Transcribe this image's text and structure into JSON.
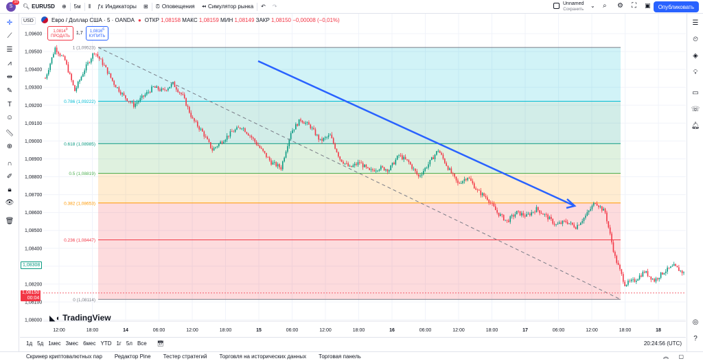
{
  "topbar": {
    "avatar_letter": "S",
    "notification_count": "10",
    "symbol": "EURUSD",
    "interval": "5м",
    "indicators_label": "Индикаторы",
    "alerts_label": "Оповещения",
    "replay_label": "Симулятор рынка",
    "layout_name": "Unnamed",
    "layout_status": "Сохранить",
    "publish_label": "Опубликовать"
  },
  "legend": {
    "title": "Евро / Доллар США · 5 · OANDA",
    "open_label": "ОТКР",
    "open": "1,08158",
    "high_label": "МАКС",
    "high": "1,08159",
    "low_label": "МИН",
    "low": "1,08149",
    "close_label": "ЗАКР",
    "close": "1,08150",
    "change": "−0,00008 (−0,01%)",
    "sell_price": "1,0814",
    "sell_sup": "9",
    "sell_label": "ПРОДАТЬ",
    "spread": "1,7",
    "buy_price": "1,0816",
    "buy_sup": "6",
    "buy_label": "КУПИТЬ",
    "currency": "USD"
  },
  "price_axis": {
    "ticks": [
      "1,09600",
      "1,09500",
      "1,09400",
      "1,09300",
      "1,09200",
      "1,09100",
      "1,09000",
      "1,08900",
      "1,08800",
      "1,08700",
      "1,08600",
      "1,08500",
      "1,08400",
      "1,08300",
      "1,08200",
      "1,08100",
      "1,08000"
    ],
    "tag_level": "1,08308",
    "tag_last": "1,08150",
    "tag_countdown": "00:04",
    "colors": {
      "last": "#f23645",
      "level": "#089981"
    }
  },
  "time_axis": {
    "ticks": [
      "12:00",
      "18:00",
      "14",
      "06:00",
      "12:00",
      "18:00",
      "15",
      "06:00",
      "12:00",
      "18:00",
      "16",
      "06:00",
      "12:00",
      "18:00",
      "17",
      "06:00",
      "12:00",
      "18:00",
      "18"
    ],
    "bold": [
      "14",
      "15",
      "16",
      "17",
      "18"
    ]
  },
  "fib": {
    "levels": [
      {
        "ratio": "1",
        "price": "1,09523",
        "color": "#787b86",
        "fill": "#787b86"
      },
      {
        "ratio": "0.786",
        "price": "1,09222",
        "color": "#00bcd4",
        "fill": "#00bcd4"
      },
      {
        "ratio": "0.618",
        "price": "1,08985",
        "color": "#089981",
        "fill": "#089981"
      },
      {
        "ratio": "0.5",
        "price": "1,08819",
        "color": "#4caf50",
        "fill": "#4caf50"
      },
      {
        "ratio": "0.382",
        "price": "1,08653",
        "color": "#ff9800",
        "fill": "#ff9800"
      },
      {
        "ratio": "0.236",
        "price": "1,08447",
        "color": "#f23645",
        "fill": "#f23645"
      },
      {
        "ratio": "0",
        "price": "1,08114",
        "color": "#787b86",
        "fill": "#f23645"
      }
    ]
  },
  "chart_data": {
    "type": "line",
    "title": "Евро / Доллар США · 5 · OANDA",
    "xlabel": "",
    "ylabel": "",
    "ylim": [
      1.08,
      1.0965
    ],
    "series": [
      {
        "values": [
          1.0935,
          1.0952,
          1.0945,
          1.0928,
          1.094,
          1.095,
          1.0942,
          1.0932,
          1.0925,
          1.092,
          1.0925,
          1.093,
          1.0928,
          1.0932,
          1.0925,
          1.0912,
          1.0905,
          1.0895,
          1.09,
          1.0905,
          1.0908,
          1.0902,
          1.0895,
          1.0888,
          1.0885,
          1.0905,
          1.0912,
          1.0908,
          1.09,
          1.0903,
          1.089,
          1.0885,
          1.0888,
          1.0883,
          1.0885,
          1.0884,
          1.0892,
          1.0888,
          1.088,
          1.0887,
          1.0895,
          1.0885,
          1.0876,
          1.088,
          1.0872,
          1.0868,
          1.086,
          1.0855,
          1.086,
          1.0858,
          1.0862,
          1.0858,
          1.0853,
          1.0855,
          1.0852,
          1.0858,
          1.0866,
          1.086,
          1.0835,
          1.082,
          1.0822,
          1.0827,
          1.0822,
          1.0827,
          1.083,
          1.0826
        ]
      }
    ],
    "grid": true
  },
  "rangebar": {
    "ranges": [
      "1д",
      "5д",
      "1мес",
      "3мес",
      "6мес",
      "YTD",
      "1г",
      "5л",
      "Все"
    ],
    "clock": "20:24:56 (UTC)"
  },
  "bottomtabs": [
    "Скринер криптовалютных пар",
    "Редактор Pine",
    "Тестер стратегий",
    "Торговля на исторических данных",
    "Торговая панель"
  ],
  "watermark": "TradingView"
}
